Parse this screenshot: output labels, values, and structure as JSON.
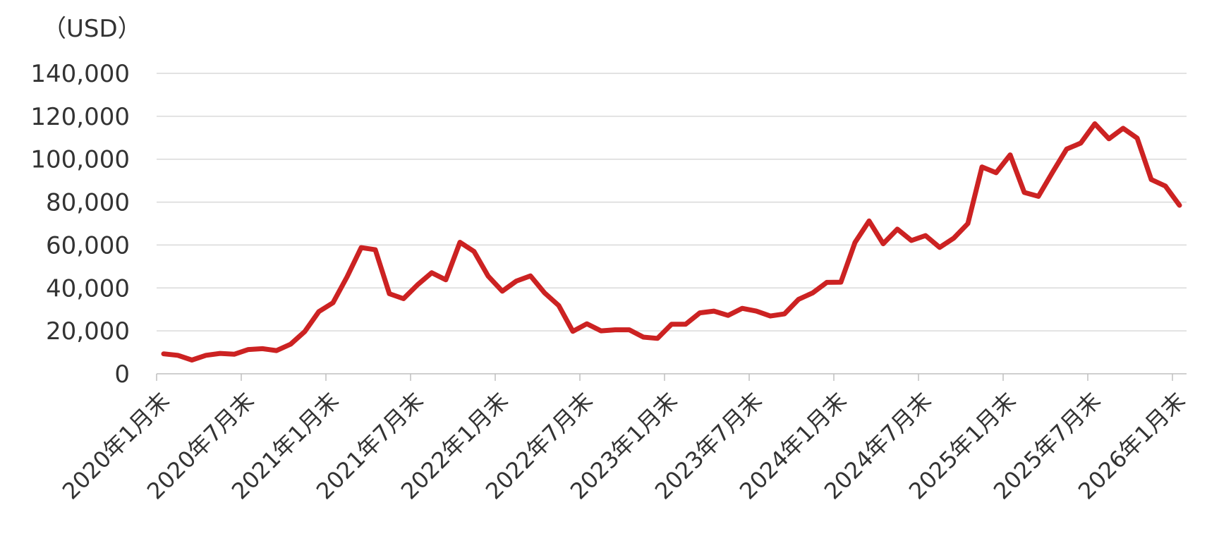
{
  "chart_data": {
    "type": "line",
    "unit_label": "（USD）",
    "title": "",
    "xlabel": "",
    "ylabel": "",
    "ylim": [
      0,
      140000
    ],
    "y_ticks": [
      0,
      20000,
      40000,
      60000,
      80000,
      100000,
      120000,
      140000
    ],
    "y_tick_labels": [
      "0",
      "20,000",
      "40,000",
      "60,000",
      "80,000",
      "100,000",
      "120,000",
      "140,000"
    ],
    "x_tick_labels": [
      "2020年1月末",
      "2020年7月末",
      "2021年1月末",
      "2021年7月末",
      "2022年1月末",
      "2022年7月末",
      "2023年1月末",
      "2023年7月末",
      "2024年1月末",
      "2024年7月末",
      "2025年1月末",
      "2025年7月末",
      "2026年1月末"
    ],
    "x_tick_every_months": 6,
    "grid": true,
    "legend": "none",
    "series": [
      {
        "color": "#cc2222",
        "values": [
          9300,
          8600,
          6400,
          8600,
          9500,
          9100,
          11300,
          11700,
          10800,
          13800,
          19700,
          29000,
          33100,
          45200,
          58800,
          57800,
          37300,
          35000,
          41500,
          47100,
          43800,
          61300,
          57000,
          45500,
          38500,
          43200,
          45600,
          37700,
          31800,
          19800,
          23300,
          20000,
          20500,
          20500,
          17100,
          16500,
          23100,
          23100,
          28400,
          29200,
          27200,
          30500,
          29200,
          26900,
          27900,
          34700,
          37700,
          42600,
          42700,
          61200,
          71200,
          60600,
          67400,
          62100,
          64400,
          58900,
          63200,
          70000,
          96400,
          93700,
          102000,
          84500,
          82700,
          93900,
          104700,
          107500,
          116500,
          109500,
          114400,
          109800,
          90500,
          87500,
          78500
        ]
      }
    ]
  }
}
